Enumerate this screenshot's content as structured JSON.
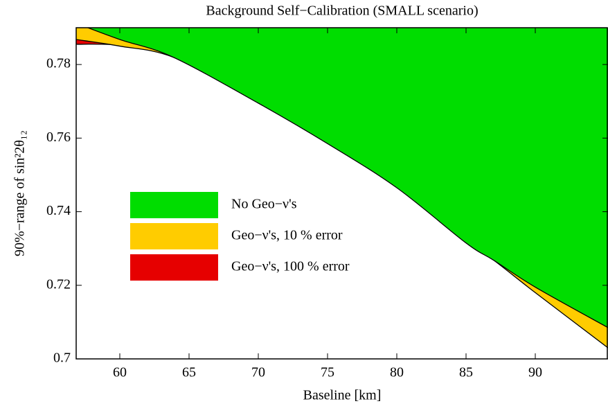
{
  "chart_data": {
    "type": "area",
    "title": "Background Self−Calibration (SMALL scenario)",
    "x_label": "Baseline [km]",
    "y_label": "90%−range of sin²2θ₁₂",
    "x": [
      56.85,
      60,
      63.85,
      70,
      75,
      80,
      85,
      87,
      90,
      95.25
    ],
    "series": [
      {
        "name": "Geo−ν's, 100 % error",
        "color": "#e60000",
        "values": [
          0.7855,
          0.7852,
          0.7822,
          0.7712,
          0.7607,
          0.7482,
          0.732,
          0.727,
          0.7197,
          0.7087
        ]
      },
      {
        "name": "Geo−ν's, 10 % error",
        "color": "#ffcc00",
        "values": [
          0.7868,
          0.785,
          0.782,
          0.771,
          0.7605,
          0.748,
          0.7318,
          0.7268,
          0.718,
          0.703
        ]
      },
      {
        "name": "No Geo−ν's",
        "color": "#00dd00",
        "values": [
          0.7912,
          0.7868,
          0.782,
          0.7695,
          0.7585,
          0.7465,
          0.7315,
          0.7268,
          0.7195,
          0.7085
        ]
      }
    ],
    "xlim": [
      56.85,
      95.25
    ],
    "ylim": [
      0.7,
      0.79
    ],
    "xticks": [
      60,
      65,
      70,
      75,
      80,
      85,
      90
    ],
    "yticks": [
      0.7,
      0.72,
      0.74,
      0.76,
      0.78
    ],
    "legend": "center left"
  }
}
